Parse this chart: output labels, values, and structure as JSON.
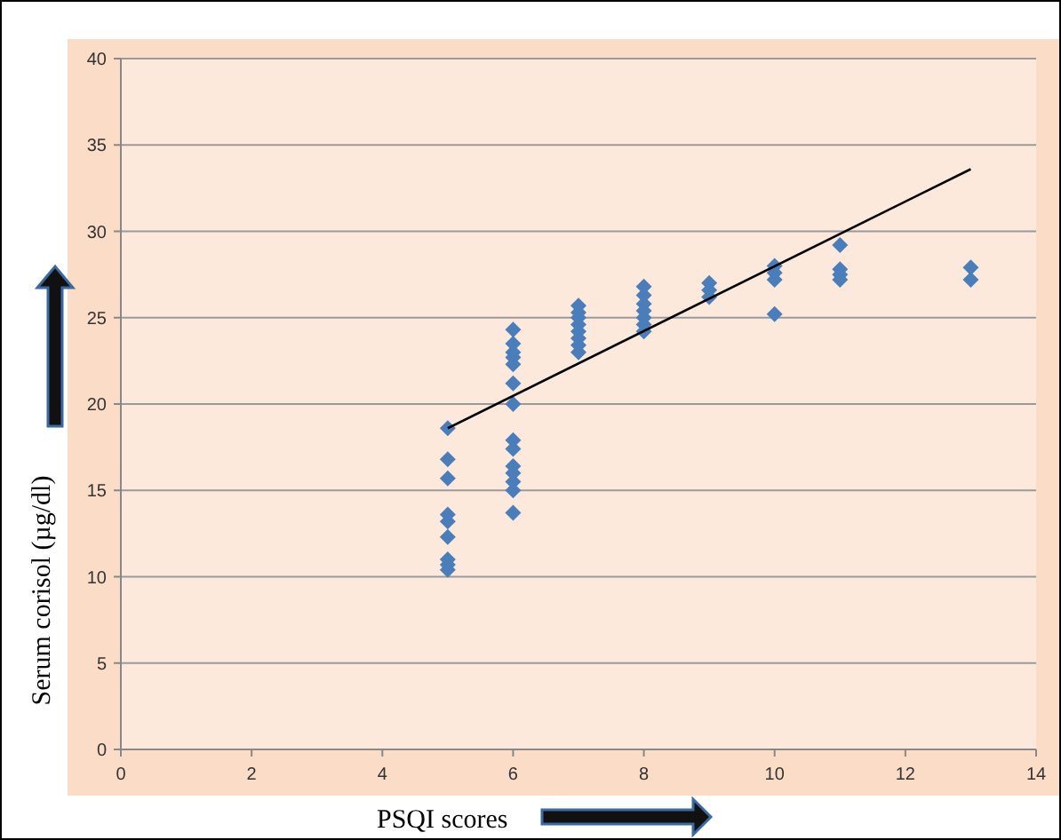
{
  "chart_data": {
    "type": "scatter",
    "xlabel": "PSQI scores",
    "ylabel": "Serum  corisol (µg/dl)",
    "xlim": [
      0,
      14
    ],
    "xticks": [
      0,
      2,
      4,
      6,
      8,
      10,
      12,
      14
    ],
    "ylim": [
      0,
      40
    ],
    "yticks": [
      0,
      5,
      10,
      15,
      20,
      25,
      30,
      35,
      40
    ],
    "grid": "y",
    "marker": "diamond",
    "series": [
      {
        "color": "#4a7ebb",
        "x": [
          5,
          5,
          5,
          5,
          5,
          5,
          5,
          5,
          5,
          6,
          6,
          6,
          6,
          6,
          6,
          6,
          6,
          6,
          6,
          6,
          6,
          6,
          6,
          7,
          7,
          7,
          7,
          7,
          7,
          7,
          7,
          8,
          8,
          8,
          8,
          8,
          8,
          8,
          9,
          9,
          9,
          10,
          10,
          10,
          10,
          11,
          11,
          11,
          11,
          13,
          13
        ],
        "values": [
          18.6,
          16.8,
          15.7,
          13.6,
          13.2,
          12.3,
          11.0,
          10.7,
          10.4,
          24.3,
          23.5,
          23.0,
          22.7,
          22.3,
          21.2,
          20.0,
          17.9,
          17.4,
          16.4,
          16.0,
          15.5,
          15.0,
          13.7,
          25.7,
          25.3,
          25.0,
          24.6,
          24.2,
          23.8,
          23.4,
          23.0,
          26.8,
          26.3,
          25.8,
          25.4,
          25.0,
          24.6,
          24.2,
          27.0,
          26.6,
          26.2,
          28.0,
          27.6,
          27.2,
          25.2,
          29.2,
          27.8,
          27.5,
          27.2,
          27.9,
          27.2
        ]
      },
      {
        "type": "line",
        "color": "#000000",
        "x": [
          5,
          13
        ],
        "values": [
          18.6,
          33.6
        ],
        "marker": "none"
      }
    ]
  }
}
